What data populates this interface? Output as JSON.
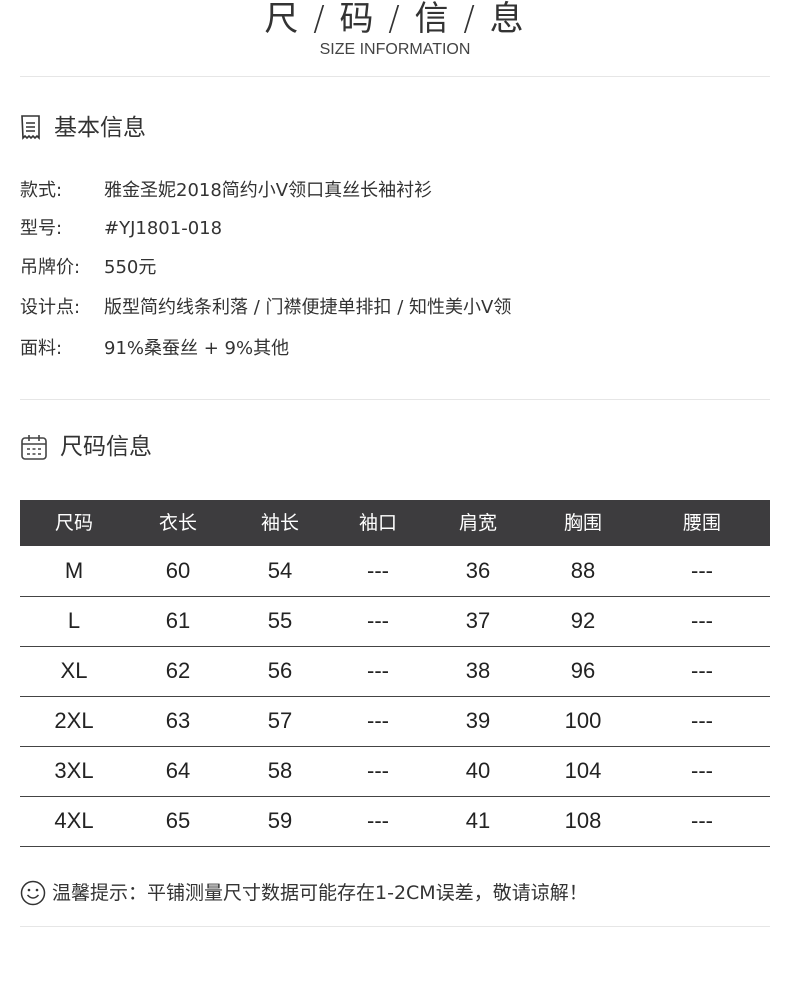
{
  "header": {
    "title": "尺 / 码 / 信 / 息",
    "subtitle": "SIZE INFORMATION"
  },
  "basic": {
    "title": "基本信息",
    "icon": "receipt-icon",
    "items": [
      {
        "label": "款式:",
        "value": "雅金圣妮2018简约小V领口真丝长袖衬衫"
      },
      {
        "label": "型号:",
        "value": "#YJ1801-018"
      },
      {
        "label": "吊牌价:",
        "value": "550元"
      },
      {
        "label": "设计点:",
        "value": "版型简约线条利落 / 门襟便捷单排扣 / 知性美小V领"
      },
      {
        "label": "面料:",
        "value": "91%桑蚕丝 + 9%其他"
      }
    ]
  },
  "size": {
    "title": "尺码信息",
    "icon": "calendar-icon",
    "headers": [
      "尺码",
      "衣长",
      "袖长",
      "袖口",
      "肩宽",
      "胸围",
      "腰围"
    ],
    "rows": [
      [
        "M",
        "60",
        "54",
        "---",
        "36",
        "88",
        "---"
      ],
      [
        "L",
        "61",
        "55",
        "---",
        "37",
        "92",
        "---"
      ],
      [
        "XL",
        "62",
        "56",
        "---",
        "38",
        "96",
        "---"
      ],
      [
        "2XL",
        "63",
        "57",
        "---",
        "39",
        "100",
        "---"
      ],
      [
        "3XL",
        "64",
        "58",
        "---",
        "40",
        "104",
        "---"
      ],
      [
        "4XL",
        "65",
        "59",
        "---",
        "41",
        "108",
        "---"
      ]
    ]
  },
  "tip": {
    "icon": "smiley-icon",
    "text": "温馨提示：平铺测量尺寸数据可能存在1-2CM误差，敬请谅解！"
  },
  "colors": {
    "table_header": "#3d3c3e"
  }
}
